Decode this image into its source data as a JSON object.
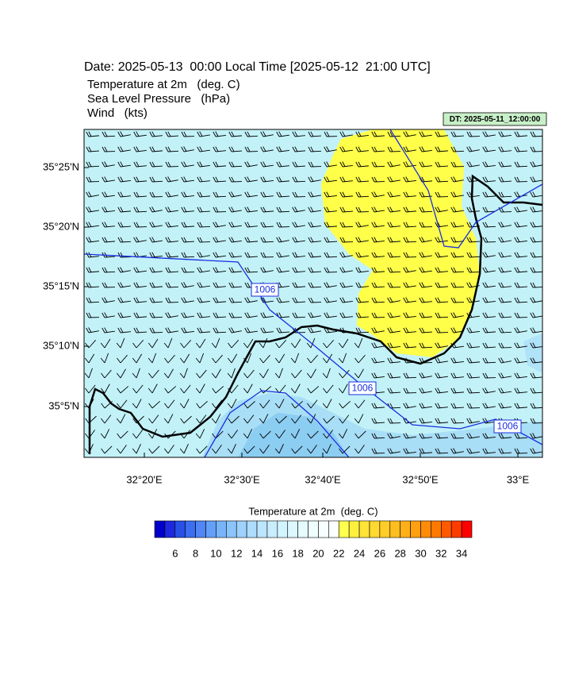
{
  "header": {
    "title": "Date: 2025-05-13  00:00 Local Time [2025-05-12  21:00 UTC]",
    "fields": [
      "Temperature at 2m   (deg. C)",
      "Sea Level Pressure   (hPa)",
      "Wind   (kts)"
    ],
    "dt_label": "DT: 2025-05-11_12:00:00"
  },
  "map": {
    "y_axis_labels": [
      "35°25'N",
      "35°20'N",
      "35°15'N",
      "35°10'N",
      "35°5'N"
    ],
    "x_axis_labels": [
      "32°20'E",
      "32°30'E",
      "32°40'E",
      "32°50'E",
      "33°E"
    ],
    "contour_labels": [
      "1006",
      "1006",
      "1006"
    ]
  },
  "colorbar": {
    "title": "Temperature at 2m  (deg. C)",
    "ticks": [
      6,
      8,
      10,
      12,
      14,
      16,
      18,
      20,
      22,
      24,
      26,
      28,
      30,
      32,
      34
    ],
    "colors": [
      "#0000c8",
      "#1e28dc",
      "#2850e6",
      "#3c6ef0",
      "#5086f5",
      "#64a0f8",
      "#78b4fa",
      "#8cc4fc",
      "#9ed2fd",
      "#aedcfd",
      "#bce6fe",
      "#c8eefe",
      "#d2f4fe",
      "#dcf8fe",
      "#e6fbfe",
      "#effdfe",
      "#f6fefe",
      "#fcfffe",
      "#ffff50",
      "#fff040",
      "#ffe438",
      "#ffd830",
      "#ffcc28",
      "#ffbe20",
      "#ffb018",
      "#ffa010",
      "#ff8c08",
      "#ff7800",
      "#ff5a00",
      "#ff3c00",
      "#ff0000"
    ]
  }
}
